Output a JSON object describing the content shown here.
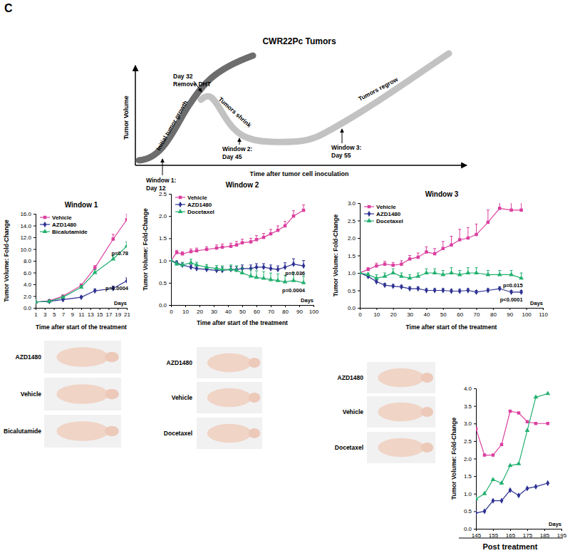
{
  "panel_label": "C",
  "schematic": {
    "title": "CWR22Pc Tumors",
    "y_label": "Tumor Volume",
    "x_label": "Time after tumor cell inoculation",
    "phases": [
      "Initial tumor growth",
      "Tumors shrink",
      "Tumors regrow"
    ],
    "event": [
      "Day 32",
      "Remove DHT"
    ],
    "windows": [
      [
        "Window 1:",
        "Day 12"
      ],
      [
        "Window 2:",
        "Day 45"
      ],
      [
        "Window 3:",
        "Day 55"
      ]
    ]
  },
  "photos": [
    [
      "AZD1480",
      "Vehicle",
      "Bicalutamide"
    ],
    [
      "AZD1480",
      "Vehicle",
      "Docetaxel"
    ],
    [
      "AZD1480",
      "Vehicle",
      "Docetaxel"
    ]
  ],
  "chart_data": [
    {
      "type": "line",
      "title": "Window 1",
      "x_label": "Time after start of the treatment",
      "y_label": "Tumor Volume: Fold-Change",
      "annotations": [
        "Days"
      ],
      "legend": "upper left",
      "x": [
        1,
        4,
        7,
        11,
        14,
        18,
        21
      ],
      "xlim": [
        1,
        21
      ],
      "xticks": [
        1,
        3,
        5,
        7,
        9,
        11,
        13,
        15,
        17,
        19,
        21
      ],
      "ylim": [
        0,
        16
      ],
      "yticks": [
        {
          "value": 0,
          "label": "0.0"
        },
        {
          "value": 2,
          "label": "2.0"
        },
        {
          "value": 4,
          "label": "4.0"
        },
        {
          "value": 6,
          "label": "6.0"
        },
        {
          "value": 8,
          "label": "8.0"
        },
        {
          "value": 10,
          "label": "10.0"
        },
        {
          "value": 12,
          "label": "12.0"
        },
        {
          "value": 14,
          "label": "14.0"
        },
        {
          "value": 16,
          "label": "16.0"
        }
      ],
      "series": [
        {
          "name": "Vehicle",
          "color": "#db3f9f",
          "marker": "square",
          "values": [
            1.0,
            1.2,
            2.0,
            3.8,
            6.8,
            11.7,
            15.0
          ],
          "errors": [
            0.05,
            0.1,
            0.15,
            0.3,
            0.4,
            0.8,
            1.0
          ]
        },
        {
          "name": "AZD1480",
          "color": "#2e3192",
          "marker": "diamond",
          "annotation": "p=0.0004",
          "values": [
            1.0,
            1.1,
            1.4,
            1.8,
            2.9,
            3.3,
            4.6
          ],
          "errors": [
            0.05,
            0.1,
            0.1,
            0.2,
            0.3,
            0.4,
            0.5
          ]
        },
        {
          "name": "Bicalutamide",
          "color": "#22b06f",
          "marker": "triangle",
          "annotation": "p=0.78",
          "values": [
            1.0,
            1.1,
            1.8,
            3.5,
            6.0,
            8.3,
            10.5
          ],
          "errors": [
            0.05,
            0.1,
            0.2,
            0.3,
            0.5,
            0.6,
            0.7
          ]
        }
      ]
    },
    {
      "type": "line",
      "title": "Window 2",
      "x_label": "Time after start of the treatment",
      "y_label": "Tumor Volume: Fold-Change",
      "annotations": [
        "Days"
      ],
      "legend": "upper left",
      "x": [
        0,
        4,
        8,
        14,
        18,
        25,
        32,
        36,
        42,
        46,
        50,
        56,
        60,
        65,
        70,
        75,
        80,
        86,
        93
      ],
      "xlim": [
        0,
        100
      ],
      "xticks": [
        0,
        10,
        20,
        30,
        40,
        50,
        60,
        70,
        80,
        90,
        100
      ],
      "ylim": [
        0,
        2.5
      ],
      "yticks": [
        {
          "value": 0,
          "label": "0.0"
        },
        0.5,
        {
          "value": 1,
          "label": "1.0"
        },
        1.5,
        {
          "value": 2,
          "label": "2.0"
        },
        2.5
      ],
      "series": [
        {
          "name": "Vehicle",
          "color": "#db3f9f",
          "marker": "square",
          "values": [
            1.0,
            1.18,
            1.15,
            1.2,
            1.22,
            1.25,
            1.28,
            1.3,
            1.32,
            1.35,
            1.4,
            1.42,
            1.47,
            1.52,
            1.6,
            1.68,
            1.78,
            2.0,
            2.13
          ],
          "errors": [
            0.02,
            0.05,
            0.05,
            0.06,
            0.06,
            0.06,
            0.07,
            0.07,
            0.07,
            0.08,
            0.08,
            0.08,
            0.09,
            0.09,
            0.1,
            0.1,
            0.1,
            0.12,
            0.12
          ]
        },
        {
          "name": "AZD1480",
          "color": "#2e3192",
          "marker": "diamond",
          "annotation": "p=0.036",
          "values": [
            1.0,
            0.95,
            0.9,
            0.85,
            0.82,
            0.8,
            0.78,
            0.78,
            0.8,
            0.8,
            0.82,
            0.82,
            0.85,
            0.85,
            0.82,
            0.8,
            0.85,
            0.92,
            0.88
          ],
          "errors": [
            0.02,
            0.04,
            0.05,
            0.05,
            0.06,
            0.06,
            0.06,
            0.07,
            0.07,
            0.07,
            0.08,
            0.08,
            0.08,
            0.08,
            0.08,
            0.08,
            0.1,
            0.12,
            0.12
          ]
        },
        {
          "name": "Docetaxel",
          "color": "#22b06f",
          "marker": "triangle",
          "annotation": "p=0.0004",
          "values": [
            1.0,
            0.92,
            0.9,
            0.95,
            0.9,
            0.85,
            0.82,
            0.8,
            0.8,
            0.78,
            0.72,
            0.65,
            0.62,
            0.6,
            0.57,
            0.55,
            0.52,
            0.55,
            0.5
          ],
          "errors": [
            0.02,
            0.05,
            0.06,
            0.08,
            0.06,
            0.06,
            0.07,
            0.08,
            0.1,
            0.1,
            0.12,
            0.15,
            0.15,
            0.15,
            0.15,
            0.15,
            0.15,
            0.18,
            0.15
          ]
        }
      ]
    },
    {
      "type": "line",
      "title": "Window 3",
      "x_label": "Time after start of the treatment",
      "y_label": "Tumor Volume: Fold-Change",
      "annotations": [
        "Days"
      ],
      "legend": "upper left",
      "x": [
        0,
        5,
        10,
        15,
        20,
        25,
        30,
        35,
        40,
        45,
        50,
        55,
        60,
        65,
        70,
        77,
        84,
        91,
        97
      ],
      "xlim": [
        0,
        110
      ],
      "xticks": [
        0,
        10,
        20,
        30,
        40,
        50,
        60,
        70,
        80,
        90,
        100,
        110
      ],
      "ylim": [
        0,
        3
      ],
      "yticks": [
        {
          "value": 0,
          "label": "0.0"
        },
        0.5,
        {
          "value": 1,
          "label": "1.0"
        },
        1.5,
        {
          "value": 2,
          "label": "2.0"
        },
        2.5,
        {
          "value": 3,
          "label": "3.0"
        }
      ],
      "series": [
        {
          "name": "Vehicle",
          "color": "#db3f9f",
          "marker": "square",
          "values": [
            1.0,
            1.1,
            1.2,
            1.25,
            1.22,
            1.25,
            1.4,
            1.45,
            1.6,
            1.55,
            1.7,
            1.8,
            1.95,
            2.0,
            2.1,
            2.45,
            2.85,
            2.8,
            2.8
          ],
          "errors": [
            0.02,
            0.05,
            0.08,
            0.08,
            0.08,
            0.1,
            0.1,
            0.12,
            0.15,
            0.15,
            0.2,
            0.25,
            0.3,
            0.3,
            0.3,
            0.35,
            0.5,
            0.55,
            0.5
          ]
        },
        {
          "name": "AZD1480",
          "color": "#2e3192",
          "marker": "diamond",
          "annotation": "p<0.0001",
          "values": [
            1.0,
            0.9,
            0.75,
            0.65,
            0.62,
            0.6,
            0.55,
            0.55,
            0.5,
            0.5,
            0.5,
            0.48,
            0.48,
            0.5,
            0.45,
            0.5,
            0.55,
            0.45,
            0.45
          ],
          "errors": [
            0.02,
            0.05,
            0.05,
            0.05,
            0.05,
            0.05,
            0.05,
            0.05,
            0.05,
            0.05,
            0.05,
            0.05,
            0.05,
            0.05,
            0.05,
            0.05,
            0.05,
            0.05,
            0.05
          ]
        },
        {
          "name": "Docetaxel",
          "color": "#22b06f",
          "marker": "triangle",
          "annotation": "p=0.015",
          "values": [
            1.0,
            0.95,
            0.85,
            0.9,
            1.0,
            0.9,
            0.85,
            0.9,
            1.0,
            1.0,
            0.95,
            1.0,
            0.95,
            1.0,
            1.0,
            0.95,
            0.95,
            0.95,
            0.85
          ],
          "errors": [
            0.02,
            0.05,
            0.1,
            0.1,
            0.12,
            0.1,
            0.1,
            0.1,
            0.12,
            0.12,
            0.12,
            0.15,
            0.12,
            0.15,
            0.15,
            0.12,
            0.12,
            0.12,
            0.15
          ]
        }
      ]
    },
    {
      "type": "line",
      "title": "Post treatment",
      "y_label": "Tumor Volume: Fold-Change",
      "annotations": [
        "Days"
      ],
      "x": [
        145,
        150,
        155,
        160,
        165,
        170,
        175,
        180,
        187
      ],
      "xlim": [
        145,
        195
      ],
      "xticks": [
        145,
        155,
        165,
        175,
        185,
        195
      ],
      "ylim": [
        0,
        4
      ],
      "yticks": [
        {
          "value": 0,
          "label": "0.0"
        },
        0.5,
        {
          "value": 1,
          "label": "1.0"
        },
        1.5,
        {
          "value": 2,
          "label": "2.0"
        },
        2.5,
        {
          "value": 3,
          "label": "3.0"
        },
        3.5,
        {
          "value": 4,
          "label": "4.0"
        }
      ],
      "series": [
        {
          "color": "#db3f9f",
          "marker": "square",
          "values": [
            2.85,
            2.1,
            2.1,
            2.4,
            3.35,
            3.3,
            3.05,
            3.0,
            3.0
          ]
        },
        {
          "color": "#2e3192",
          "marker": "diamond",
          "values": [
            0.45,
            0.5,
            0.8,
            0.8,
            1.1,
            0.95,
            1.15,
            1.2,
            1.3
          ]
        },
        {
          "color": "#22b06f",
          "marker": "triangle",
          "values": [
            0.85,
            1.0,
            1.4,
            1.3,
            1.8,
            1.85,
            2.8,
            3.75,
            3.85
          ]
        }
      ]
    }
  ]
}
